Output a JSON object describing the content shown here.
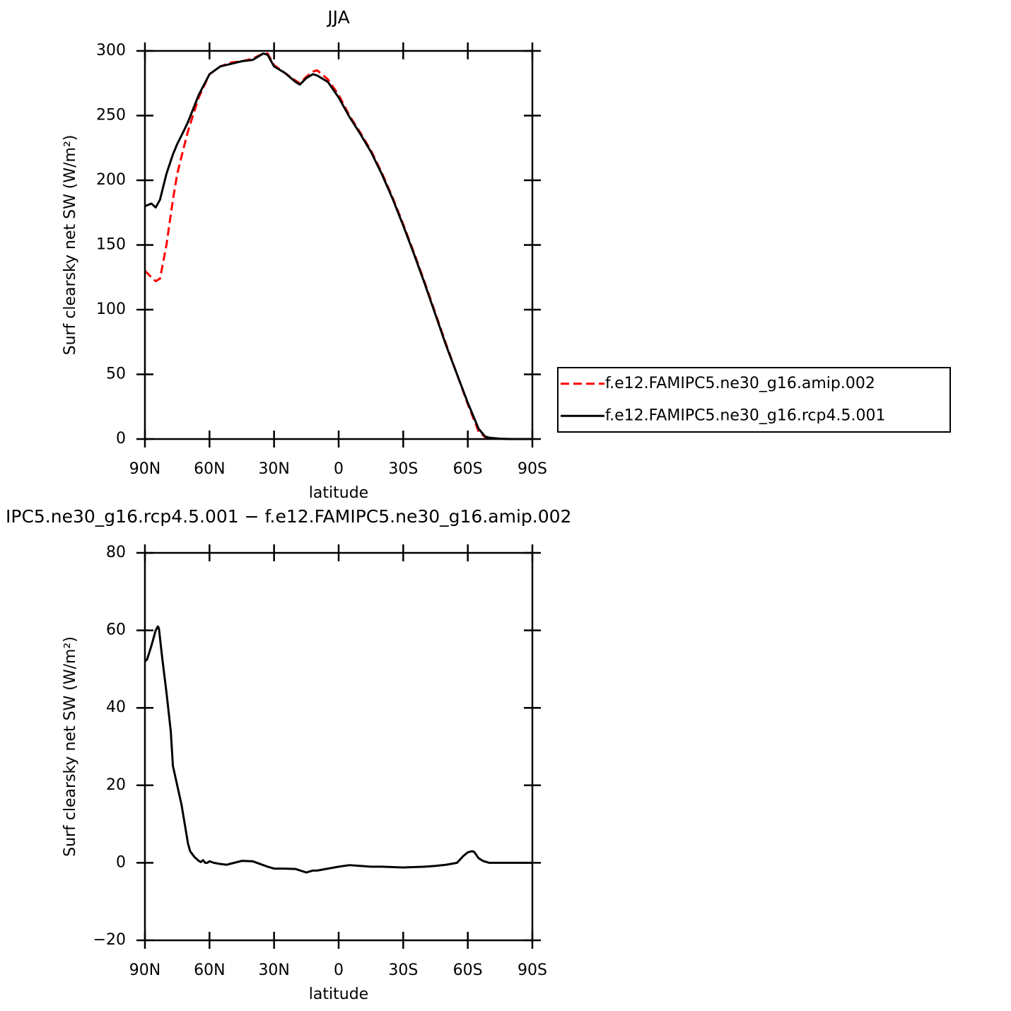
{
  "chart_data": [
    {
      "type": "line",
      "title": "JJA",
      "xlabel": "latitude",
      "ylabel": "Surf clearsky net SW (W/m²)",
      "x": [
        90,
        87,
        85,
        83,
        80,
        77,
        75,
        72,
        70,
        65,
        60,
        55,
        50,
        45,
        40,
        35,
        33,
        30,
        25,
        20,
        18,
        15,
        12,
        10,
        5,
        0,
        -5,
        -10,
        -15,
        -20,
        -25,
        -30,
        -35,
        -40,
        -45,
        -50,
        -55,
        -60,
        -65,
        -68,
        -70,
        -75,
        -80,
        -85,
        -90
      ],
      "series": [
        {
          "name": "f.e12.FAMIPC5.ne30_g16.amip.002",
          "color": "#ff0000",
          "linestyle": "dashed",
          "values": [
            130,
            125,
            122,
            124,
            150,
            185,
            205,
            225,
            238,
            264,
            282,
            288,
            291,
            292,
            294,
            298,
            298,
            289,
            283,
            277,
            275,
            280,
            284,
            285,
            278,
            266,
            250,
            237,
            223,
            206,
            187,
            166,
            144,
            121,
            97,
            73,
            50,
            27,
            6,
            1.5,
            0.8,
            0.2,
            0,
            0,
            0
          ]
        },
        {
          "name": "f.e12.FAMIPC5.ne30_g16.rcp4.5.001",
          "color": "#000000",
          "linestyle": "solid",
          "values": [
            180,
            182,
            179,
            185,
            205,
            220,
            228,
            238,
            245,
            266,
            282,
            288,
            290,
            292,
            293,
            298,
            297,
            288,
            283,
            276,
            274,
            279,
            282,
            281,
            276,
            264,
            249,
            236,
            222,
            205,
            186,
            165,
            143,
            120,
            96,
            72,
            50,
            28,
            8,
            2,
            1,
            0.3,
            0,
            0,
            0
          ]
        }
      ],
      "xlim": [
        90,
        -90
      ],
      "xticks": [
        {
          "value": 90,
          "label": "90N"
        },
        {
          "value": 60,
          "label": "60N"
        },
        {
          "value": 30,
          "label": "30N"
        },
        0,
        {
          "value": -30,
          "label": "30S"
        },
        {
          "value": -60,
          "label": "60S"
        },
        {
          "value": -90,
          "label": "90S"
        }
      ],
      "ylim": [
        0,
        300
      ],
      "yticks": [
        0,
        50,
        100,
        150,
        200,
        250,
        300
      ],
      "legend": "outside right"
    },
    {
      "type": "line",
      "title": "IPC5.ne30_g16.rcp4.5.001 − f.e12.FAMIPC5.ne30_g16.amip.002",
      "xlabel": "latitude",
      "ylabel": "Surf clearsky net SW (W/m²)",
      "x": [
        90,
        89,
        87,
        85,
        84,
        83.5,
        82,
        80,
        78,
        77,
        75,
        73,
        71.5,
        70,
        69,
        67,
        65,
        64,
        63,
        62,
        61,
        60,
        58,
        55,
        52,
        50,
        45,
        40,
        35,
        33,
        30,
        25,
        20,
        15,
        12,
        10,
        5,
        0,
        -5,
        -10,
        -15,
        -20,
        -30,
        -40,
        -45,
        -50,
        -55,
        -58,
        -60,
        -62,
        -63,
        -65,
        -67,
        -70,
        -75,
        -80,
        -85,
        -90
      ],
      "series": [
        {
          "color": "#000000",
          "linestyle": "solid",
          "values": [
            52,
            52.5,
            56,
            60,
            61,
            60.5,
            53,
            44,
            34,
            25,
            20,
            15,
            10,
            5,
            3,
            1.5,
            0.5,
            0.2,
            0.7,
            0,
            0,
            0.4,
            0,
            -0.3,
            -0.5,
            -0.2,
            0.5,
            0.4,
            -0.6,
            -1,
            -1.5,
            -1.5,
            -1.6,
            -2.5,
            -2,
            -2,
            -1.5,
            -1,
            -0.6,
            -0.8,
            -1,
            -1,
            -1.2,
            -1,
            -0.8,
            -0.5,
            0,
            1.8,
            2.7,
            3,
            2.8,
            1.2,
            0.5,
            0,
            0,
            0,
            0,
            0
          ]
        }
      ],
      "xlim": [
        90,
        -90
      ],
      "xticks": [
        {
          "value": 90,
          "label": "90N"
        },
        {
          "value": 60,
          "label": "60N"
        },
        {
          "value": 30,
          "label": "30N"
        },
        0,
        {
          "value": -30,
          "label": "30S"
        },
        {
          "value": -60,
          "label": "60S"
        },
        {
          "value": -90,
          "label": "90S"
        }
      ],
      "ylim": [
        -20,
        80
      ],
      "yticks": [
        {
          "value": -20,
          "label": "−20"
        },
        0,
        20,
        40,
        60,
        80
      ]
    }
  ]
}
